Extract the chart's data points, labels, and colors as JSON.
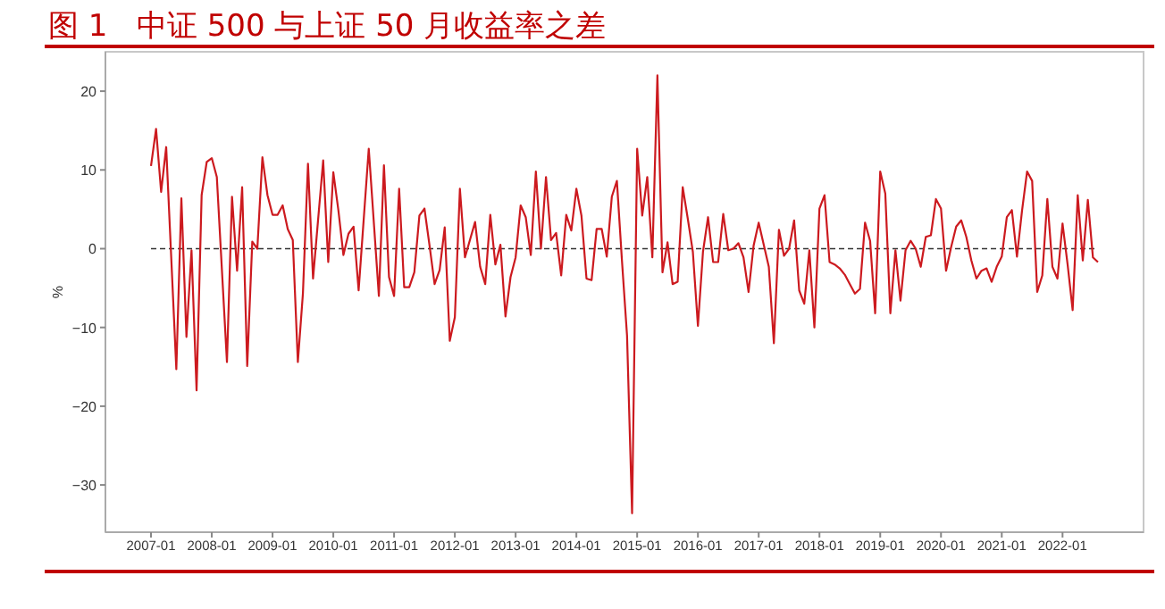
{
  "chart_data": {
    "type": "line",
    "title": "图 1   中证 500 与上证 50 月收益率之差",
    "ylabel": "%",
    "series": [
      {
        "color": "#cc1a1f",
        "x": [
          "2007-01",
          "2007-02",
          "2007-03",
          "2007-04",
          "2007-06",
          "2007-07",
          "2007-08",
          "2007-09",
          "2007-10",
          "2007-11",
          "2007-12",
          "2008-01",
          "2008-02",
          "2008-04",
          "2008-05",
          "2008-06",
          "2008-07",
          "2008-08",
          "2008-09",
          "2008-10",
          "2008-11",
          "2008-12",
          "2009-01",
          "2009-02",
          "2009-03",
          "2009-04",
          "2009-05",
          "2009-06",
          "2009-07",
          "2009-08",
          "2009-09",
          "2009-11",
          "2009-12",
          "2010-01",
          "2010-02",
          "2010-03",
          "2010-04",
          "2010-05",
          "2010-06",
          "2010-08",
          "2010-10",
          "2010-11",
          "2010-12",
          "2011-01",
          "2011-02",
          "2011-03",
          "2011-04",
          "2011-05",
          "2011-06",
          "2011-07",
          "2011-08",
          "2011-09",
          "2011-10",
          "2011-11",
          "2011-12",
          "2012-01",
          "2012-02",
          "2012-03",
          "2012-05",
          "2012-06",
          "2012-07",
          "2012-08",
          "2012-09",
          "2012-10",
          "2012-11",
          "2012-12",
          "2013-01",
          "2013-02",
          "2013-03",
          "2013-04",
          "2013-05",
          "2013-06",
          "2013-07",
          "2013-08",
          "2013-09",
          "2013-10",
          "2013-11",
          "2013-12",
          "2014-01",
          "2014-02",
          "2014-03",
          "2014-04",
          "2014-05",
          "2014-06",
          "2014-07",
          "2014-08",
          "2014-09",
          "2014-10",
          "2014-11",
          "2014-12",
          "2015-01",
          "2015-02",
          "2015-03",
          "2015-04",
          "2015-05",
          "2015-06",
          "2015-07",
          "2015-08",
          "2015-09",
          "2015-10",
          "2015-11",
          "2015-12",
          "2016-01",
          "2016-02",
          "2016-03",
          "2016-04",
          "2016-05",
          "2016-06",
          "2016-07",
          "2016-08",
          "2016-09",
          "2016-10",
          "2016-11",
          "2016-12",
          "2017-01",
          "2017-03",
          "2017-04",
          "2017-05",
          "2017-06",
          "2017-07",
          "2017-08",
          "2017-09",
          "2017-10",
          "2017-11",
          "2017-12",
          "2018-01",
          "2018-02",
          "2018-03",
          "2018-04",
          "2018-05",
          "2018-06",
          "2018-07",
          "2018-08",
          "2018-09",
          "2018-10",
          "2018-11",
          "2018-12",
          "2019-01",
          "2019-02",
          "2019-03",
          "2019-04",
          "2019-05",
          "2019-06",
          "2019-07",
          "2019-08",
          "2019-09",
          "2019-10",
          "2019-11",
          "2019-12",
          "2020-01",
          "2020-02",
          "2020-03",
          "2020-04",
          "2020-05",
          "2020-06",
          "2020-07",
          "2020-08",
          "2020-09",
          "2020-10",
          "2020-11",
          "2020-12",
          "2021-01",
          "2021-02",
          "2021-03",
          "2021-04",
          "2021-05",
          "2021-06",
          "2021-07",
          "2021-08",
          "2021-09",
          "2021-10",
          "2021-11",
          "2021-12",
          "2022-01",
          "2022-02",
          "2022-03",
          "2022-04",
          "2022-05",
          "2022-06",
          "2022-07",
          "2022-08"
        ],
        "values": [
          10.5,
          15.2,
          7.2,
          12.9,
          -15.3,
          6.4,
          -11.2,
          -0.2,
          -18,
          6.8,
          11,
          11.5,
          9.1,
          -14.4,
          6.6,
          -2.8,
          7.8,
          -14.9,
          0.9,
          0,
          11.6,
          6.8,
          4.3,
          4.3,
          5.5,
          2.5,
          1.1,
          -14.4,
          -5.7,
          10.8,
          -3.8,
          11.2,
          -1.7,
          9.7,
          4.9,
          -0.8,
          1.9,
          2.8,
          -5.3,
          12.7,
          -6,
          10.6,
          -3.6,
          -6,
          7.6,
          -4.9,
          -4.9,
          -3,
          4.2,
          5.1,
          0.4,
          -4.5,
          -2.7,
          2.7,
          -11.7,
          -8.7,
          7.6,
          -1.1,
          3.4,
          -2.3,
          -4.5,
          4.3,
          -2,
          0.5,
          -8.6,
          -3.6,
          -1.1,
          5.5,
          4,
          -0.8,
          9.8,
          0,
          9.1,
          1.1,
          2,
          -3.4,
          4.3,
          2.3,
          7.6,
          4.2,
          -3.8,
          -4,
          2.5,
          2.5,
          -1,
          6.6,
          8.6,
          -1.5,
          -11,
          -33.6,
          12.7,
          4.2,
          9.1,
          -1.1,
          22,
          -3,
          0.8,
          -4.5,
          -4.2,
          7.8,
          3.8,
          -0.4,
          -9.8,
          -0.4,
          4,
          -1.7,
          -1.7,
          4.4,
          -0.2,
          0,
          0.7,
          -1.1,
          -5.5,
          0.4,
          3.3,
          -2.3,
          -12,
          2.4,
          -0.9,
          0,
          3.6,
          -5.3,
          -7,
          -0.2,
          -10,
          5.1,
          6.8,
          -1.7,
          -2,
          -2.5,
          -3.3,
          -4.5,
          -5.7,
          -5.1,
          3.3,
          1,
          -8.2,
          9.8,
          7,
          -8.2,
          -0.2,
          -6.6,
          -0.2,
          1,
          0,
          -2.3,
          1.5,
          1.7,
          6.3,
          5.1,
          -2.8,
          0.2,
          2.8,
          3.6,
          1.5,
          -1.5,
          -3.8,
          -2.8,
          -2.5,
          -4.2,
          -2.3,
          -1,
          4,
          4.9,
          -1,
          4.8,
          9.8,
          8.6,
          -5.5,
          -3.4,
          6.3,
          -2.3,
          -3.8,
          3.2,
          -2,
          -7.8,
          6.8,
          -1.5,
          6.2,
          -1.1,
          -1.7
        ]
      }
    ],
    "xlim": [
      "2006-04",
      "2023-05"
    ],
    "xticks": [
      "2007-01",
      "2008-01",
      "2009-01",
      "2010-01",
      "2011-01",
      "2012-01",
      "2013-01",
      "2014-01",
      "2015-01",
      "2016-01",
      "2017-01",
      "2018-01",
      "2019-01",
      "2020-01",
      "2021-01",
      "2022-01"
    ],
    "ylim": [
      -36,
      25
    ],
    "yticks": [
      -30,
      -20,
      -10,
      0,
      10,
      20
    ],
    "ref_lines": [
      {
        "axis": "y",
        "value": 0,
        "color": "#333333",
        "line_style": "dashed"
      }
    ],
    "grid": false,
    "marker": "none",
    "line_style": "solid"
  }
}
